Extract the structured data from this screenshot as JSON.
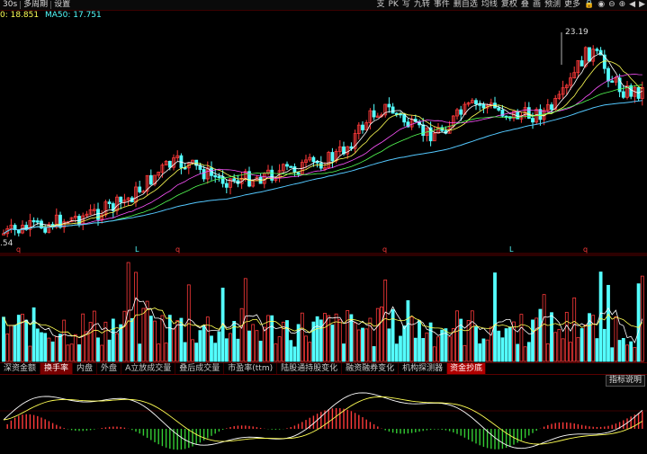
{
  "topbar": {
    "period": "30s",
    "multi_period": "多周期",
    "settings": "设置",
    "right_items": [
      "支",
      "PK",
      "写",
      "九转",
      "事件",
      "删自选",
      "均线",
      "复权",
      "叠",
      "画",
      "预测",
      "更多"
    ]
  },
  "legend": {
    "ma20": "0: 18.851",
    "ma50": "MA50: 17.751"
  },
  "price_labels": {
    "high": "23.19",
    "low": ".54"
  },
  "tabs": [
    {
      "label": "深资金额",
      "active": false
    },
    {
      "label": "换手率",
      "active": true
    },
    {
      "label": "内盘",
      "active": false
    },
    {
      "label": "外盘",
      "active": false
    },
    {
      "label": "A立放成交量",
      "active": false
    },
    {
      "label": "叠后成交量",
      "active": false
    },
    {
      "label": "市盈率(ttm)",
      "active": false
    },
    {
      "label": "陆股通持股变化",
      "active": false
    },
    {
      "label": "融资融券变化",
      "active": false
    },
    {
      "label": "机构探测器",
      "active": false
    },
    {
      "label": "资金抄底",
      "active": false,
      "box": true
    }
  ],
  "indicator_button": "指标说明",
  "markers": [
    "q",
    "L",
    "q",
    "q",
    "L",
    "q"
  ],
  "colors": {
    "up": "#ff3a3a",
    "down": "#54ffff",
    "ma5": "#ffffff",
    "ma10": "#ffff54",
    "ma20": "#ff54ff",
    "ma30": "#54ff54",
    "ma60": "#54c8ff",
    "macd_pos": "#ff3a3a",
    "macd_neg": "#33cc33"
  }
}
